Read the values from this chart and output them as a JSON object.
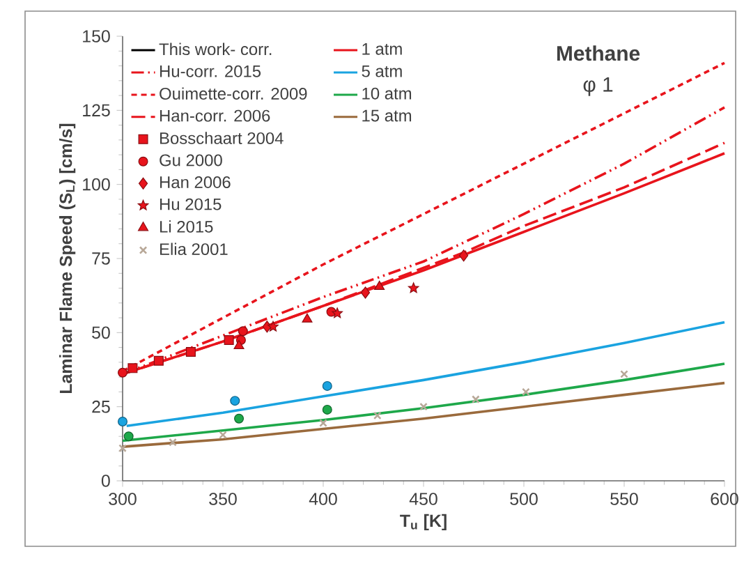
{
  "chart_data": {
    "type": "line",
    "xlabel": "T$_{u}$ [K]",
    "ylabel": "Laminar Flame Speed (S$_{L}$) [cm/s]",
    "xlim": [
      300,
      600
    ],
    "ylim": [
      0,
      150
    ],
    "xticks": [
      300,
      350,
      400,
      450,
      500,
      550,
      600
    ],
    "yticks": [
      0,
      25,
      50,
      75,
      100,
      125,
      150
    ],
    "legend": "top left",
    "annotations": [
      "This work- corr.",
      "Methane",
      "φ 1"
    ],
    "series": [
      {
        "name": "Hu-corr. 2015",
        "line_style": "dashdotdot",
        "color": "#e8141c",
        "x": [
          300,
          350,
          400,
          450,
          500,
          550,
          600
        ],
        "values": [
          36,
          49,
          62,
          74,
          90,
          107,
          126
        ]
      },
      {
        "name": "Ouimette-corr. 2009",
        "line_style": "dashed",
        "color": "#e8141c",
        "x": [
          300,
          350,
          400,
          450,
          500,
          550,
          600
        ],
        "values": [
          37,
          55,
          73,
          90,
          107,
          124,
          141
        ]
      },
      {
        "name": "Han-corr. 2006",
        "line_style": "longdashed",
        "color": "#e8141c",
        "x": [
          300,
          350,
          400,
          470,
          500,
          550,
          600
        ],
        "values": [
          36,
          47,
          59,
          77,
          86,
          99,
          114
        ]
      },
      {
        "name": "1 atm",
        "line_style": "solid",
        "color": "#e8141c",
        "x": [
          300,
          350,
          400,
          450,
          500,
          550,
          600
        ],
        "values": [
          36,
          47,
          59,
          71,
          84,
          97,
          110.5
        ]
      },
      {
        "name": "5 atm",
        "line_style": "solid",
        "color": "#1aa3e0",
        "x": [
          302,
          350,
          400,
          450,
          500,
          550,
          600
        ],
        "values": [
          18.5,
          23,
          28.5,
          34,
          40,
          46.5,
          53.5
        ]
      },
      {
        "name": "10 atm",
        "line_style": "solid",
        "color": "#1ea84a",
        "x": [
          300,
          350,
          400,
          450,
          500,
          550,
          600
        ],
        "values": [
          13.5,
          17,
          20.5,
          24.5,
          29,
          34,
          39.5
        ]
      },
      {
        "name": "15 atm",
        "line_style": "solid",
        "color": "#9a6a3c",
        "x": [
          300,
          350,
          400,
          450,
          500,
          550,
          600
        ],
        "values": [
          11.5,
          14,
          17.5,
          21,
          25,
          29,
          33
        ]
      },
      {
        "name": "Bosschaart 2004",
        "type": "scatter",
        "marker": "square",
        "color": "#e8141c",
        "x": [
          305,
          318,
          334,
          353
        ],
        "values": [
          38,
          40.5,
          43.5,
          47.5
        ]
      },
      {
        "name": "Gu 2000",
        "type": "scatter",
        "marker": "circle",
        "colors": [
          "#e8141c",
          "#e8141c",
          "#e8141c",
          "#e8141c",
          "#1aa3e0",
          "#1aa3e0",
          "#1aa3e0",
          "#1ea84a",
          "#1ea84a",
          "#1ea84a"
        ],
        "x": [
          300,
          359,
          360,
          404,
          300,
          356,
          402,
          303,
          358,
          402
        ],
        "values": [
          36.5,
          47.5,
          50.5,
          57,
          20,
          27,
          32,
          15,
          21,
          24
        ]
      },
      {
        "name": "Han 2006",
        "type": "scatter",
        "marker": "diamond",
        "color": "#e8141c",
        "x": [
          372,
          421,
          470
        ],
        "values": [
          52,
          63.5,
          76
        ]
      },
      {
        "name": "Hu 2015",
        "type": "scatter",
        "marker": "star",
        "color": "#e8141c",
        "x": [
          375,
          407,
          445
        ],
        "values": [
          52,
          56.5,
          65
        ]
      },
      {
        "name": "Li 2015",
        "type": "scatter",
        "marker": "triangle",
        "color": "#e8141c",
        "x": [
          358,
          392,
          428
        ],
        "values": [
          45.5,
          54.5,
          65.5
        ]
      },
      {
        "name": "Elia 2001",
        "type": "scatter",
        "marker": "cross",
        "color": "#b8a898",
        "x": [
          300,
          325,
          350,
          400,
          427,
          450,
          476,
          501,
          550
        ],
        "values": [
          11,
          13,
          15.5,
          19.5,
          22,
          25,
          27.5,
          30,
          36
        ]
      }
    ]
  }
}
